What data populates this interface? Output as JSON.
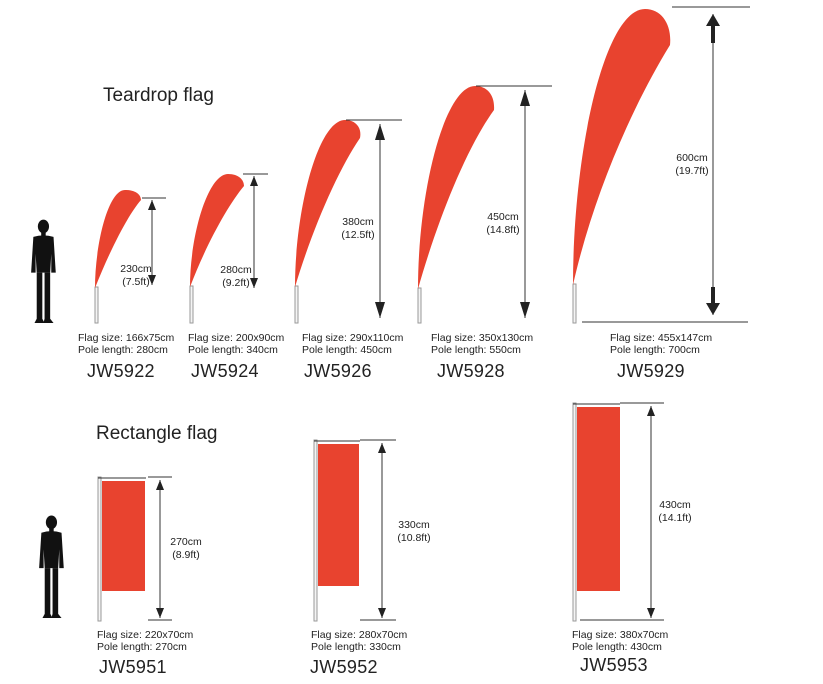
{
  "teardrop": {
    "title": "Teardrop flag",
    "items": [
      {
        "model": "JW5922",
        "height_cm": "230cm",
        "height_ft": "(7.5ft)",
        "flag_size": "Flag size: 166x75cm",
        "pole_length": "Pole length: 280cm"
      },
      {
        "model": "JW5924",
        "height_cm": "280cm",
        "height_ft": "(9.2ft)",
        "flag_size": "Flag size: 200x90cm",
        "pole_length": "Pole length: 340cm"
      },
      {
        "model": "JW5926",
        "height_cm": "380cm",
        "height_ft": "(12.5ft)",
        "flag_size": "Flag size: 290x110cm",
        "pole_length": "Pole length: 450cm"
      },
      {
        "model": "JW5928",
        "height_cm": "450cm",
        "height_ft": "(14.8ft)",
        "flag_size": "Flag size: 350x130cm",
        "pole_length": "Pole length: 550cm"
      },
      {
        "model": "JW5929",
        "height_cm": "600cm",
        "height_ft": "(19.7ft)",
        "flag_size": "Flag size: 455x147cm",
        "pole_length": "Pole length: 700cm"
      }
    ]
  },
  "rectangle": {
    "title": "Rectangle flag",
    "items": [
      {
        "model": "JW5951",
        "height_cm": "270cm",
        "height_ft": "(8.9ft)",
        "flag_size": "Flag size: 220x70cm",
        "pole_length": "Pole length: 270cm"
      },
      {
        "model": "JW5952",
        "height_cm": "330cm",
        "height_ft": "(10.8ft)",
        "flag_size": "Flag size: 280x70cm",
        "pole_length": "Pole length: 330cm"
      },
      {
        "model": "JW5953",
        "height_cm": "430cm",
        "height_ft": "(14.1ft)",
        "flag_size": "Flag size: 380x70cm",
        "pole_length": "Pole length: 430cm"
      }
    ]
  },
  "colors": {
    "flag": "#e8432f",
    "person": "#111111",
    "line": "#333333"
  },
  "icons": [
    "person-silhouette-icon",
    "flag-icon",
    "arrow-up-icon",
    "arrow-down-icon"
  ]
}
